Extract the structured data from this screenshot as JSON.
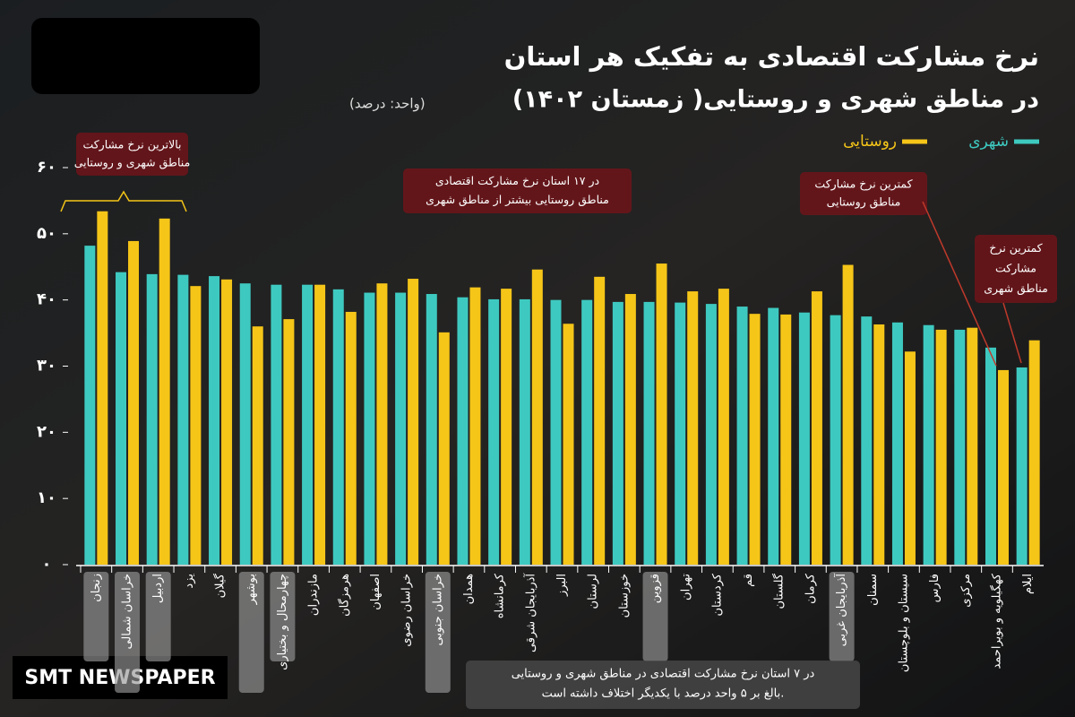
{
  "chart_data": {
    "type": "bar",
    "title": "نرخ مشارکت اقتصادی به تفکیک هر استان",
    "subtitle": "در مناطق شهری و روستایی( زمستان ۱۴۰۲)",
    "unit_note": "(واحد: درصد)",
    "categories": [
      "زنجان",
      "خراسان شمالی",
      "اردبیل",
      "یزد",
      "گیلان",
      "بوشهر",
      "چهارمحال و بختیاری",
      "مازندران",
      "هرمزگان",
      "اصفهان",
      "خراسان رضوی",
      "خراسان جنوبی",
      "همدان",
      "کرمانشاه",
      "آذربایجان شرقی",
      "البرز",
      "لرستان",
      "خوزستان",
      "قزوین",
      "تهران",
      "کردستان",
      "قم",
      "گلستان",
      "کرمان",
      "آذربایجان غربی",
      "سمنان",
      "سیستان و بلوچستان",
      "فارس",
      "مرکزی",
      "کهگیلویه و بویراحمد",
      "ایلام"
    ],
    "series": [
      {
        "name": "شهری",
        "color": "#3ec9c0",
        "values": [
          48.2,
          44.2,
          43.9,
          43.8,
          43.6,
          42.5,
          42.3,
          42.3,
          41.6,
          41.1,
          41.1,
          40.9,
          40.4,
          40.1,
          40.1,
          40.0,
          40.0,
          39.7,
          39.7,
          39.6,
          39.4,
          39.0,
          38.8,
          38.1,
          37.7,
          37.5,
          36.6,
          36.2,
          35.5,
          32.8,
          29.8
        ]
      },
      {
        "name": "روستایی",
        "color": "#f5c518",
        "values": [
          53.4,
          48.9,
          52.3,
          42.1,
          43.1,
          36.0,
          37.1,
          42.3,
          38.2,
          42.5,
          43.2,
          35.1,
          41.9,
          41.7,
          44.6,
          36.4,
          43.5,
          40.9,
          45.5,
          41.3,
          41.7,
          37.9,
          37.8,
          41.3,
          45.3,
          36.3,
          32.2,
          35.5,
          35.8,
          29.4,
          33.9
        ]
      }
    ],
    "ylim": [
      0,
      60
    ],
    "yticks": [
      {
        "value": 0,
        "label": "۰"
      },
      {
        "value": 10,
        "label": "۱۰"
      },
      {
        "value": 20,
        "label": "۲۰"
      },
      {
        "value": 30,
        "label": "۳۰"
      },
      {
        "value": 40,
        "label": "۴۰"
      },
      {
        "value": 50,
        "label": "۵۰"
      },
      {
        "value": 60,
        "label": "۶۰"
      }
    ],
    "highlighted_categories": [
      0,
      1,
      2,
      5,
      6,
      11,
      18,
      24
    ],
    "annotations": [
      {
        "lines": [
          "بالاترین نرخ مشارکت",
          "مناطق شهری و روستایی"
        ]
      },
      {
        "lines": [
          "در ۱۷ استان نرخ مشارکت اقتصادی",
          "مناطق روستایی بیشتر از مناطق شهری"
        ]
      },
      {
        "lines": [
          "کمترین نرخ مشارکت",
          "مناطق روستایی"
        ]
      },
      {
        "lines": [
          "کمترین نرخ",
          "مشارکت",
          "مناطق شهری"
        ]
      }
    ],
    "note": {
      "lines": [
        "در ۷ استان نرخ مشارکت اقتصادی در مناطق شهری و روستایی",
        "بالغ بر ۵ واحد درصد با یکدیگر اختلاف داشته است."
      ]
    },
    "watermark": "SMT NEWSPAPER"
  }
}
